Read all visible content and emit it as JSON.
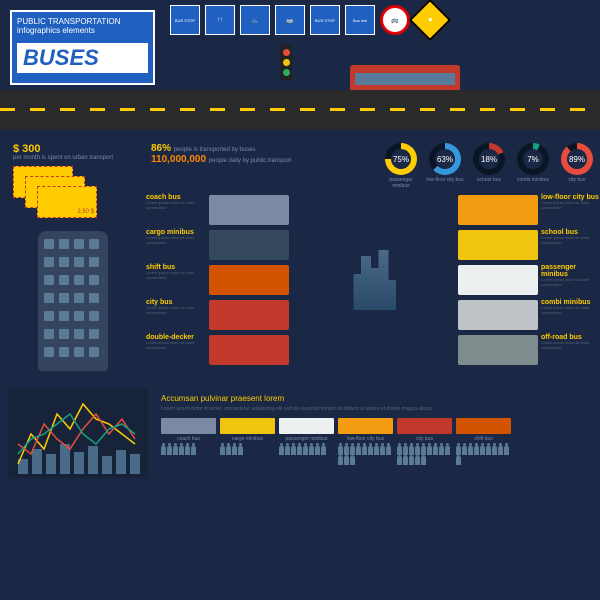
{
  "header": {
    "subtitle": "PUBLIC TRANSPORTATION",
    "subtitle2": "infographics elements",
    "title": "BUSES"
  },
  "signs": [
    "BUS STOP",
    "↑↑",
    "🚲",
    "🚌",
    "BUS STOP",
    "Bus line",
    "🚌",
    "⬥"
  ],
  "spend": {
    "value": "$ 300",
    "label": "per month is spent on urban transport"
  },
  "tickets": [
    "2,50 $",
    "2,50 $",
    "2,50 $"
  ],
  "stats": [
    {
      "pct": "86%",
      "txt": "people is transported by buses",
      "color": "#ffcc00"
    },
    {
      "pct": "110,000,000",
      "txt": "people daily by public transport",
      "color": "#ff8800"
    }
  ],
  "donuts": [
    {
      "pct": 75,
      "lbl": "passenger minibus",
      "color": "#ffcc00"
    },
    {
      "pct": 63,
      "lbl": "low-floor city bus",
      "color": "#3498db"
    },
    {
      "pct": 18,
      "lbl": "school bus",
      "color": "#c0392b"
    },
    {
      "pct": 7,
      "lbl": "combi minibus",
      "color": "#16a085"
    },
    {
      "pct": 89,
      "lbl": "city bus",
      "color": "#e74c3c"
    }
  ],
  "busTypesLeft": [
    {
      "name": "coach bus",
      "color": "#7a8aa5"
    },
    {
      "name": "cargo minibus",
      "color": "#34495e"
    },
    {
      "name": "shift bus",
      "color": "#d35400"
    },
    {
      "name": "city bus",
      "color": "#c0392b"
    },
    {
      "name": "double-decker",
      "color": "#c0392b"
    }
  ],
  "busTypesRight": [
    {
      "name": "low-floor city bus",
      "color": "#f39c12"
    },
    {
      "name": "school bus",
      "color": "#f1c40f"
    },
    {
      "name": "passenger minibus",
      "color": "#ecf0f1"
    },
    {
      "name": "combi minibus",
      "color": "#bdc3c7"
    },
    {
      "name": "off-road bus",
      "color": "#7f8c8d"
    }
  ],
  "typeDesc": "Lorem ipsum dolor sit amet consectetur",
  "chart": {
    "bars": [
      15,
      25,
      20,
      30,
      22,
      28,
      18,
      24,
      20
    ],
    "barColor": "#4a6a8a",
    "lines": [
      {
        "color": "#ffcc00",
        "pts": [
          10,
          40,
          25,
          60,
          45,
          70,
          55,
          50,
          40,
          30
        ]
      },
      {
        "color": "#e74c3c",
        "pts": [
          30,
          20,
          50,
          35,
          25,
          45,
          60,
          40,
          55,
          35
        ]
      },
      {
        "color": "#16a085",
        "pts": [
          20,
          35,
          40,
          50,
          60,
          40,
          30,
          45,
          50,
          40
        ]
      }
    ]
  },
  "capacity": {
    "title": "Accumsan pulvinar praesent lorem",
    "desc": "Lorem ipsum dolor sit amet, consectetur adipisicing elit sed do eiusmod tempor incididunt ut labore et dolore magna aliqua",
    "buses": [
      {
        "name": "coach bus",
        "color": "#7a8aa5",
        "people": 6
      },
      {
        "name": "cargo minibus",
        "color": "#f1c40f",
        "people": 4
      },
      {
        "name": "passenger minibus",
        "color": "#ecf0f1",
        "people": 8
      },
      {
        "name": "low-floor city bus",
        "color": "#f39c12",
        "people": 12
      },
      {
        "name": "city bus",
        "color": "#c0392b",
        "people": 14
      },
      {
        "name": "shift bus",
        "color": "#d35400",
        "people": 10
      }
    ]
  },
  "colors": {
    "bg": "#1a2845",
    "accent": "#ffcc00",
    "muted": "#7a8aa5"
  }
}
